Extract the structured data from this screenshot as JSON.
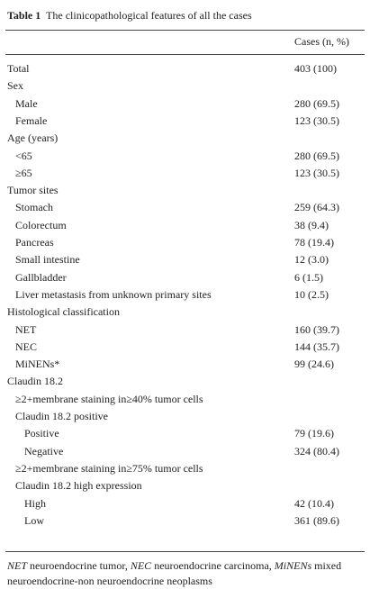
{
  "title": {
    "label": "Table 1",
    "text": "The clinicopathological features of all the cases"
  },
  "table": {
    "header": "Cases (n, %)",
    "rows": [
      {
        "label": "Total",
        "value": "403 (100)",
        "level": 0
      },
      {
        "label": "Sex",
        "level": 0
      },
      {
        "label": "Male",
        "value": "280 (69.5)",
        "level": 1
      },
      {
        "label": "Female",
        "value": "123 (30.5)",
        "level": 1
      },
      {
        "label": "Age (years)",
        "level": 0
      },
      {
        "label": "<65",
        "value": "280 (69.5)",
        "level": 1
      },
      {
        "label": "≥65",
        "value": "123 (30.5)",
        "level": 1
      },
      {
        "label": "Tumor sites",
        "level": 0
      },
      {
        "label": "Stomach",
        "value": "259 (64.3)",
        "level": 1
      },
      {
        "label": "Colorectum",
        "value": "38 (9.4)",
        "level": 1
      },
      {
        "label": "Pancreas",
        "value": "78 (19.4)",
        "level": 1
      },
      {
        "label": "Small intestine",
        "value": "12 (3.0)",
        "level": 1
      },
      {
        "label": "Gallbladder",
        "value": "6 (1.5)",
        "level": 1
      },
      {
        "label": "Liver metastasis from unknown primary sites",
        "value": "10 (2.5)",
        "level": 1
      },
      {
        "label": "Histological classification",
        "level": 0
      },
      {
        "label": "NET",
        "value": "160 (39.7)",
        "level": 1
      },
      {
        "label": "NEC",
        "value": "144 (35.7)",
        "level": 1
      },
      {
        "label": "MiNENs*",
        "value": "99 (24.6)",
        "level": 1
      },
      {
        "label": "Claudin 18.2",
        "level": 0
      },
      {
        "label": "≥2+membrane staining in≥40% tumor cells",
        "level": 1
      },
      {
        "label": "Claudin 18.2 positive",
        "level": 1
      },
      {
        "label": "Positive",
        "value": "79 (19.6)",
        "level": 2
      },
      {
        "label": "Negative",
        "value": "324 (80.4)",
        "level": 2
      },
      {
        "label": "≥2+membrane staining in≥75% tumor cells",
        "level": 1
      },
      {
        "label": "Claudin 18.2 high expression",
        "level": 1
      },
      {
        "label": "High",
        "value": "42 (10.4)",
        "level": 2
      },
      {
        "label": "Low",
        "value": "361 (89.6)",
        "level": 2
      }
    ]
  },
  "footnote": [
    {
      "abbr": "NET",
      "text": "neuroendocrine tumor,"
    },
    {
      "abbr": "NEC",
      "text": "neuroendocrine carcinoma,"
    },
    {
      "abbr": "MiNENs",
      "text": "mixed neuroendocrine-non neuroendocrine neoplasms"
    }
  ]
}
